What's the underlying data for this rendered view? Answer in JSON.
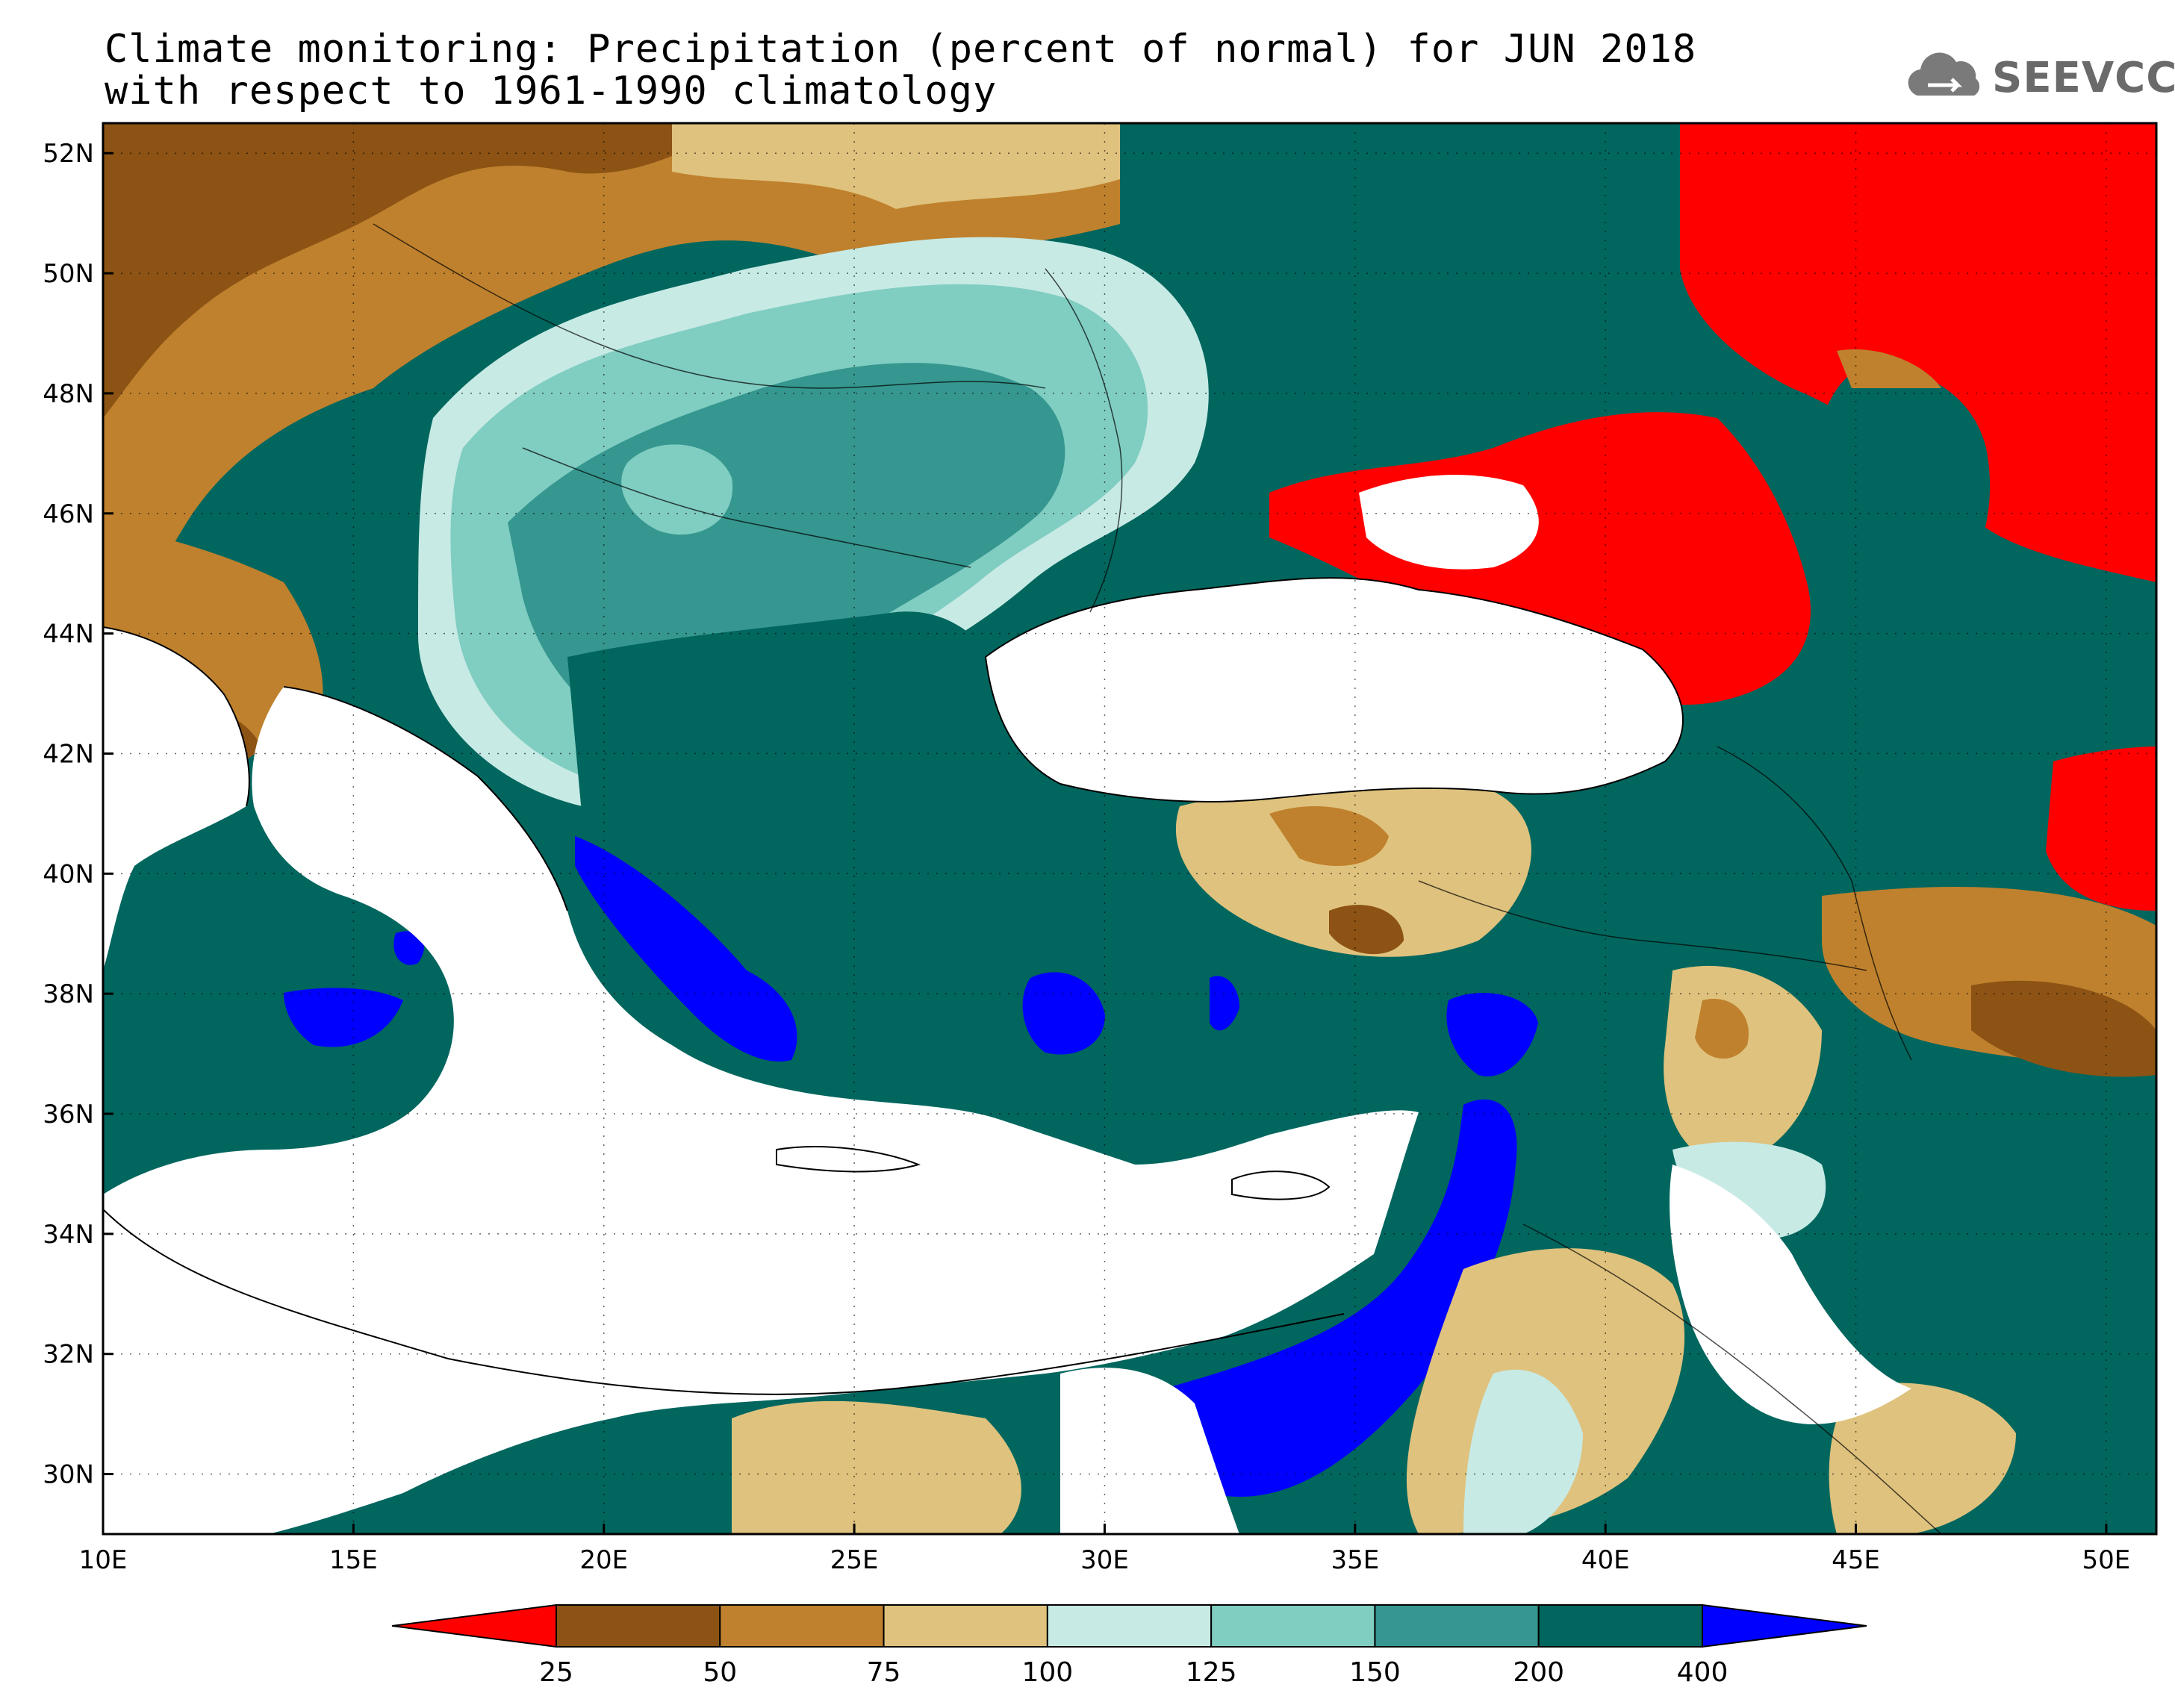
{
  "header": {
    "title_line1": "Climate monitoring: Precipitation (percent of normal) for JUN 2018",
    "title_line2": "with respect to 1961-1990 climatology",
    "logo_text": "SEEVCCC",
    "logo_icon": "cloud-icon"
  },
  "map": {
    "lat_labels": [
      "52N",
      "50N",
      "48N",
      "46N",
      "44N",
      "42N",
      "40N",
      "38N",
      "36N",
      "34N",
      "32N",
      "30N"
    ],
    "lon_labels": [
      "10E",
      "15E",
      "20E",
      "25E",
      "30E",
      "35E",
      "40E",
      "45E",
      "50E"
    ],
    "lon_range": [
      10,
      51
    ],
    "lat_range": [
      29,
      52.5
    ],
    "grid": true,
    "land_color": "#ffffff"
  },
  "colorbar": {
    "levels": [
      "25",
      "50",
      "75",
      "100",
      "125",
      "150",
      "200",
      "400"
    ],
    "colors": [
      "#ff0000",
      "#8c5314",
      "#bf812d",
      "#dfc27d",
      "#c7eae5",
      "#80cdc1",
      "#35978f",
      "#01665e",
      "#0000ff"
    ]
  }
}
